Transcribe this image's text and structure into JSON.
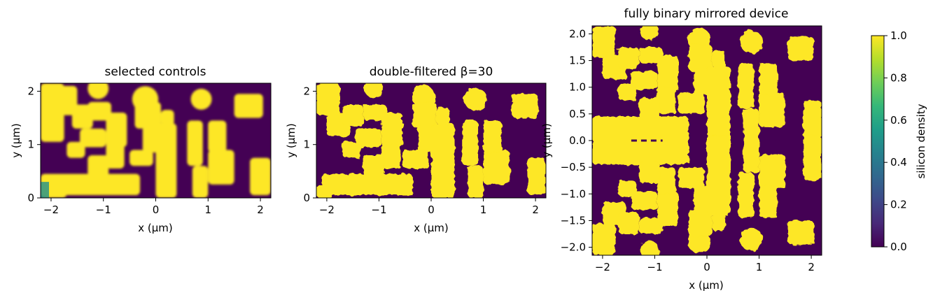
{
  "colors": {
    "low": "#440154",
    "high": "#fde725",
    "mid": "#21918c",
    "colorbar_stops": [
      "#440154",
      "#482878",
      "#3e4989",
      "#31688e",
      "#26828e",
      "#1f9e89",
      "#35b779",
      "#6ece58",
      "#b5de2b",
      "#fde725"
    ]
  },
  "chart_data": [
    {
      "type": "heatmap",
      "title": "selected controls",
      "xlabel": "x (µm)",
      "ylabel": "y (µm)",
      "xlim": [
        -2.2,
        2.2
      ],
      "ylim": [
        0,
        2.15
      ],
      "xticks": [
        -2,
        -1,
        0,
        1,
        2
      ],
      "yticks": [
        0,
        1,
        2
      ],
      "grid": false,
      "style": "smooth",
      "shapes": [
        {
          "kind": "rect",
          "x0": -2.2,
          "x1": -1.7,
          "y0": 0,
          "y1": 0.3
        },
        {
          "kind": "rect",
          "x0": -2.2,
          "x1": -0.3,
          "y0": 0.05,
          "y1": 0.45
        },
        {
          "kind": "rect",
          "x0": -2.2,
          "x1": -1.75,
          "y0": 1.05,
          "y1": 2.15
        },
        {
          "kind": "rect",
          "x0": -2.2,
          "x1": -1.5,
          "y0": 1.55,
          "y1": 2.1
        },
        {
          "kind": "rect",
          "x0": -1.6,
          "x1": -1.2,
          "y0": 1.3,
          "y1": 1.75
        },
        {
          "kind": "rect",
          "x0": -1.3,
          "x1": -0.85,
          "y0": 1.45,
          "y1": 1.8
        },
        {
          "kind": "rect",
          "x0": -0.95,
          "x1": -0.55,
          "y0": 0.95,
          "y1": 1.6
        },
        {
          "kind": "rect",
          "x0": -0.95,
          "x1": -0.6,
          "y0": 0.55,
          "y1": 1.05
        },
        {
          "kind": "rect",
          "x0": -1.45,
          "x1": -0.95,
          "y0": 0.95,
          "y1": 1.3
        },
        {
          "kind": "rect",
          "x0": -1.7,
          "x1": -1.35,
          "y0": 0.75,
          "y1": 1.05
        },
        {
          "kind": "rect",
          "x0": -1.3,
          "x1": -0.9,
          "y0": 0.4,
          "y1": 0.8
        },
        {
          "kind": "circle",
          "cx": -1.1,
          "cy": 2.05,
          "r": 0.2
        },
        {
          "kind": "circle",
          "cx": -0.2,
          "cy": 1.85,
          "r": 0.25
        },
        {
          "kind": "rect",
          "x0": -0.4,
          "x1": 0.1,
          "y0": 1.3,
          "y1": 1.8
        },
        {
          "kind": "rect",
          "x0": -0.25,
          "x1": 0.15,
          "y0": 0.85,
          "y1": 1.35
        },
        {
          "kind": "rect",
          "x0": -0.5,
          "x1": -0.05,
          "y0": 0.6,
          "y1": 0.9
        },
        {
          "kind": "rect",
          "x0": 0.0,
          "x1": 0.4,
          "y0": 0.0,
          "y1": 1.4
        },
        {
          "kind": "rect",
          "x0": 0.1,
          "x1": 0.35,
          "y0": 1.35,
          "y1": 1.65
        },
        {
          "kind": "rect",
          "x0": 0.7,
          "x1": 1.0,
          "y0": 0.0,
          "y1": 0.6
        },
        {
          "kind": "rect",
          "x0": 0.6,
          "x1": 0.9,
          "y0": 0.6,
          "y1": 1.45
        },
        {
          "kind": "circle",
          "cx": 0.87,
          "cy": 1.85,
          "r": 0.2
        },
        {
          "kind": "rect",
          "x0": 1.0,
          "x1": 1.5,
          "y0": 0.25,
          "y1": 0.9
        },
        {
          "kind": "rect",
          "x0": 1.0,
          "x1": 1.35,
          "y0": 0.85,
          "y1": 1.45
        },
        {
          "kind": "rect",
          "x0": 1.5,
          "x1": 2.05,
          "y0": 1.5,
          "y1": 1.95
        },
        {
          "kind": "rect",
          "x0": 1.8,
          "x1": 2.2,
          "y0": 0.05,
          "y1": 0.75
        }
      ]
    },
    {
      "type": "heatmap",
      "title": "double-filtered β=30",
      "xlabel": "x (µm)",
      "ylabel": "y (µm)",
      "xlim": [
        -2.2,
        2.2
      ],
      "ylim": [
        0,
        2.15
      ],
      "xticks": [
        -2,
        -1,
        0,
        1,
        2
      ],
      "yticks": [
        0,
        1,
        2
      ],
      "grid": false,
      "style": "binary",
      "shapes": [
        {
          "kind": "rect",
          "x0": -2.2,
          "x1": -1.9,
          "y0": 0.0,
          "y1": 0.25
        },
        {
          "kind": "rect",
          "x0": -2.1,
          "x1": -0.35,
          "y0": 0.05,
          "y1": 0.45
        },
        {
          "kind": "rect",
          "x0": -2.2,
          "x1": -1.75,
          "y0": 1.55,
          "y1": 2.15
        },
        {
          "kind": "rect",
          "x0": -2.0,
          "x1": -1.55,
          "y0": 1.15,
          "y1": 1.6
        },
        {
          "kind": "rect",
          "x0": -1.7,
          "x1": -1.3,
          "y0": 1.35,
          "y1": 1.75
        },
        {
          "kind": "rect",
          "x0": -1.3,
          "x1": -0.85,
          "y0": 1.45,
          "y1": 1.75
        },
        {
          "kind": "rect",
          "x0": -0.95,
          "x1": -0.55,
          "y0": 0.95,
          "y1": 1.6
        },
        {
          "kind": "rect",
          "x0": -0.95,
          "x1": -0.6,
          "y0": 0.55,
          "y1": 1.0
        },
        {
          "kind": "rect",
          "x0": -1.45,
          "x1": -0.95,
          "y0": 0.95,
          "y1": 1.3
        },
        {
          "kind": "rect",
          "x0": -1.7,
          "x1": -1.35,
          "y0": 0.75,
          "y1": 1.05
        },
        {
          "kind": "rect",
          "x0": -1.3,
          "x1": -0.9,
          "y0": 0.4,
          "y1": 0.8
        },
        {
          "kind": "circle",
          "cx": -1.1,
          "cy": 2.05,
          "r": 0.18
        },
        {
          "kind": "circle",
          "cx": -0.15,
          "cy": 1.9,
          "r": 0.22
        },
        {
          "kind": "rect",
          "x0": -0.35,
          "x1": 0.1,
          "y0": 1.3,
          "y1": 1.8
        },
        {
          "kind": "rect",
          "x0": -0.25,
          "x1": 0.15,
          "y0": 0.85,
          "y1": 1.35
        },
        {
          "kind": "rect",
          "x0": -0.55,
          "x1": -0.05,
          "y0": 0.55,
          "y1": 0.9
        },
        {
          "kind": "rect",
          "x0": 0.0,
          "x1": 0.45,
          "y0": 0.0,
          "y1": 1.4
        },
        {
          "kind": "rect",
          "x0": 0.1,
          "x1": 0.35,
          "y0": 1.35,
          "y1": 1.7
        },
        {
          "kind": "rect",
          "x0": 0.7,
          "x1": 1.0,
          "y0": 0.0,
          "y1": 0.6
        },
        {
          "kind": "rect",
          "x0": 0.6,
          "x1": 0.9,
          "y0": 0.6,
          "y1": 1.45
        },
        {
          "kind": "circle",
          "cx": 0.85,
          "cy": 1.85,
          "r": 0.22
        },
        {
          "kind": "rect",
          "x0": 1.0,
          "x1": 1.5,
          "y0": 0.25,
          "y1": 0.9
        },
        {
          "kind": "rect",
          "x0": 1.0,
          "x1": 1.35,
          "y0": 0.85,
          "y1": 1.45
        },
        {
          "kind": "rect",
          "x0": 1.55,
          "x1": 2.05,
          "y0": 1.5,
          "y1": 1.95
        },
        {
          "kind": "rect",
          "x0": 1.85,
          "x1": 2.2,
          "y0": 0.05,
          "y1": 0.75
        }
      ]
    },
    {
      "type": "heatmap",
      "title": "fully binary mirrored device",
      "xlabel": "x (µm)",
      "ylabel": "y (µm)",
      "xlim": [
        -2.2,
        2.2
      ],
      "ylim": [
        -2.15,
        2.15
      ],
      "xticks": [
        -2,
        -1,
        0,
        1,
        2
      ],
      "yticks": [
        -2.0,
        -1.5,
        -1.0,
        -0.5,
        0.0,
        0.5,
        1.0,
        1.5,
        2.0
      ],
      "grid": false,
      "style": "binary",
      "mirror_y": true,
      "shapes": [
        {
          "kind": "rect",
          "x0": -2.2,
          "x1": -0.35,
          "y0": -0.45,
          "y1": 0.45
        },
        {
          "kind": "rect",
          "x0": -2.2,
          "x1": -1.75,
          "y0": 1.55,
          "y1": 2.15
        },
        {
          "kind": "rect",
          "x0": -2.0,
          "x1": -1.55,
          "y0": 1.15,
          "y1": 1.6
        },
        {
          "kind": "rect",
          "x0": -1.7,
          "x1": -1.3,
          "y0": 1.35,
          "y1": 1.75
        },
        {
          "kind": "rect",
          "x0": -1.3,
          "x1": -0.85,
          "y0": 1.45,
          "y1": 1.75
        },
        {
          "kind": "rect",
          "x0": -0.95,
          "x1": -0.55,
          "y0": 0.95,
          "y1": 1.6
        },
        {
          "kind": "rect",
          "x0": -0.95,
          "x1": -0.6,
          "y0": 0.5,
          "y1": 1.0
        },
        {
          "kind": "rect",
          "x0": -1.45,
          "x1": -0.95,
          "y0": 0.95,
          "y1": 1.3
        },
        {
          "kind": "rect",
          "x0": -1.7,
          "x1": -1.35,
          "y0": 0.75,
          "y1": 1.05
        },
        {
          "kind": "rect",
          "x0": -1.3,
          "x1": -0.9,
          "y0": 0.4,
          "y1": 0.8
        },
        {
          "kind": "circle",
          "cx": -1.1,
          "cy": 2.05,
          "r": 0.18
        },
        {
          "kind": "circle",
          "cx": -0.15,
          "cy": 1.9,
          "r": 0.22
        },
        {
          "kind": "rect",
          "x0": -0.35,
          "x1": 0.1,
          "y0": 1.3,
          "y1": 1.8
        },
        {
          "kind": "rect",
          "x0": -0.25,
          "x1": 0.15,
          "y0": 0.85,
          "y1": 1.35
        },
        {
          "kind": "rect",
          "x0": -0.55,
          "x1": -0.05,
          "y0": 0.5,
          "y1": 0.9
        },
        {
          "kind": "rect",
          "x0": 0.0,
          "x1": 0.45,
          "y0": -0.1,
          "y1": 1.4
        },
        {
          "kind": "rect",
          "x0": 0.1,
          "x1": 0.35,
          "y0": 1.35,
          "y1": 1.7
        },
        {
          "kind": "rect",
          "x0": 0.7,
          "x1": 1.0,
          "y0": -0.1,
          "y1": 0.6
        },
        {
          "kind": "rect",
          "x0": 0.6,
          "x1": 0.9,
          "y0": 0.6,
          "y1": 1.45
        },
        {
          "kind": "circle",
          "cx": 0.85,
          "cy": 1.85,
          "r": 0.22
        },
        {
          "kind": "rect",
          "x0": 1.0,
          "x1": 1.5,
          "y0": 0.25,
          "y1": 0.9
        },
        {
          "kind": "rect",
          "x0": 1.0,
          "x1": 1.35,
          "y0": 0.85,
          "y1": 1.45
        },
        {
          "kind": "rect",
          "x0": 1.55,
          "x1": 2.05,
          "y0": 1.5,
          "y1": 1.95
        },
        {
          "kind": "rect",
          "x0": 1.85,
          "x1": 2.2,
          "y0": -0.1,
          "y1": 0.75
        }
      ],
      "center_marks": [
        {
          "x0": -1.45,
          "x1": -0.85
        },
        {
          "x0": 1.2,
          "x1": 1.4
        }
      ]
    }
  ],
  "colorbar": {
    "label": "silicon density",
    "min": 0.0,
    "max": 1.0,
    "ticks": [
      "0.0",
      "0.2",
      "0.4",
      "0.6",
      "0.8",
      "1.0"
    ]
  }
}
